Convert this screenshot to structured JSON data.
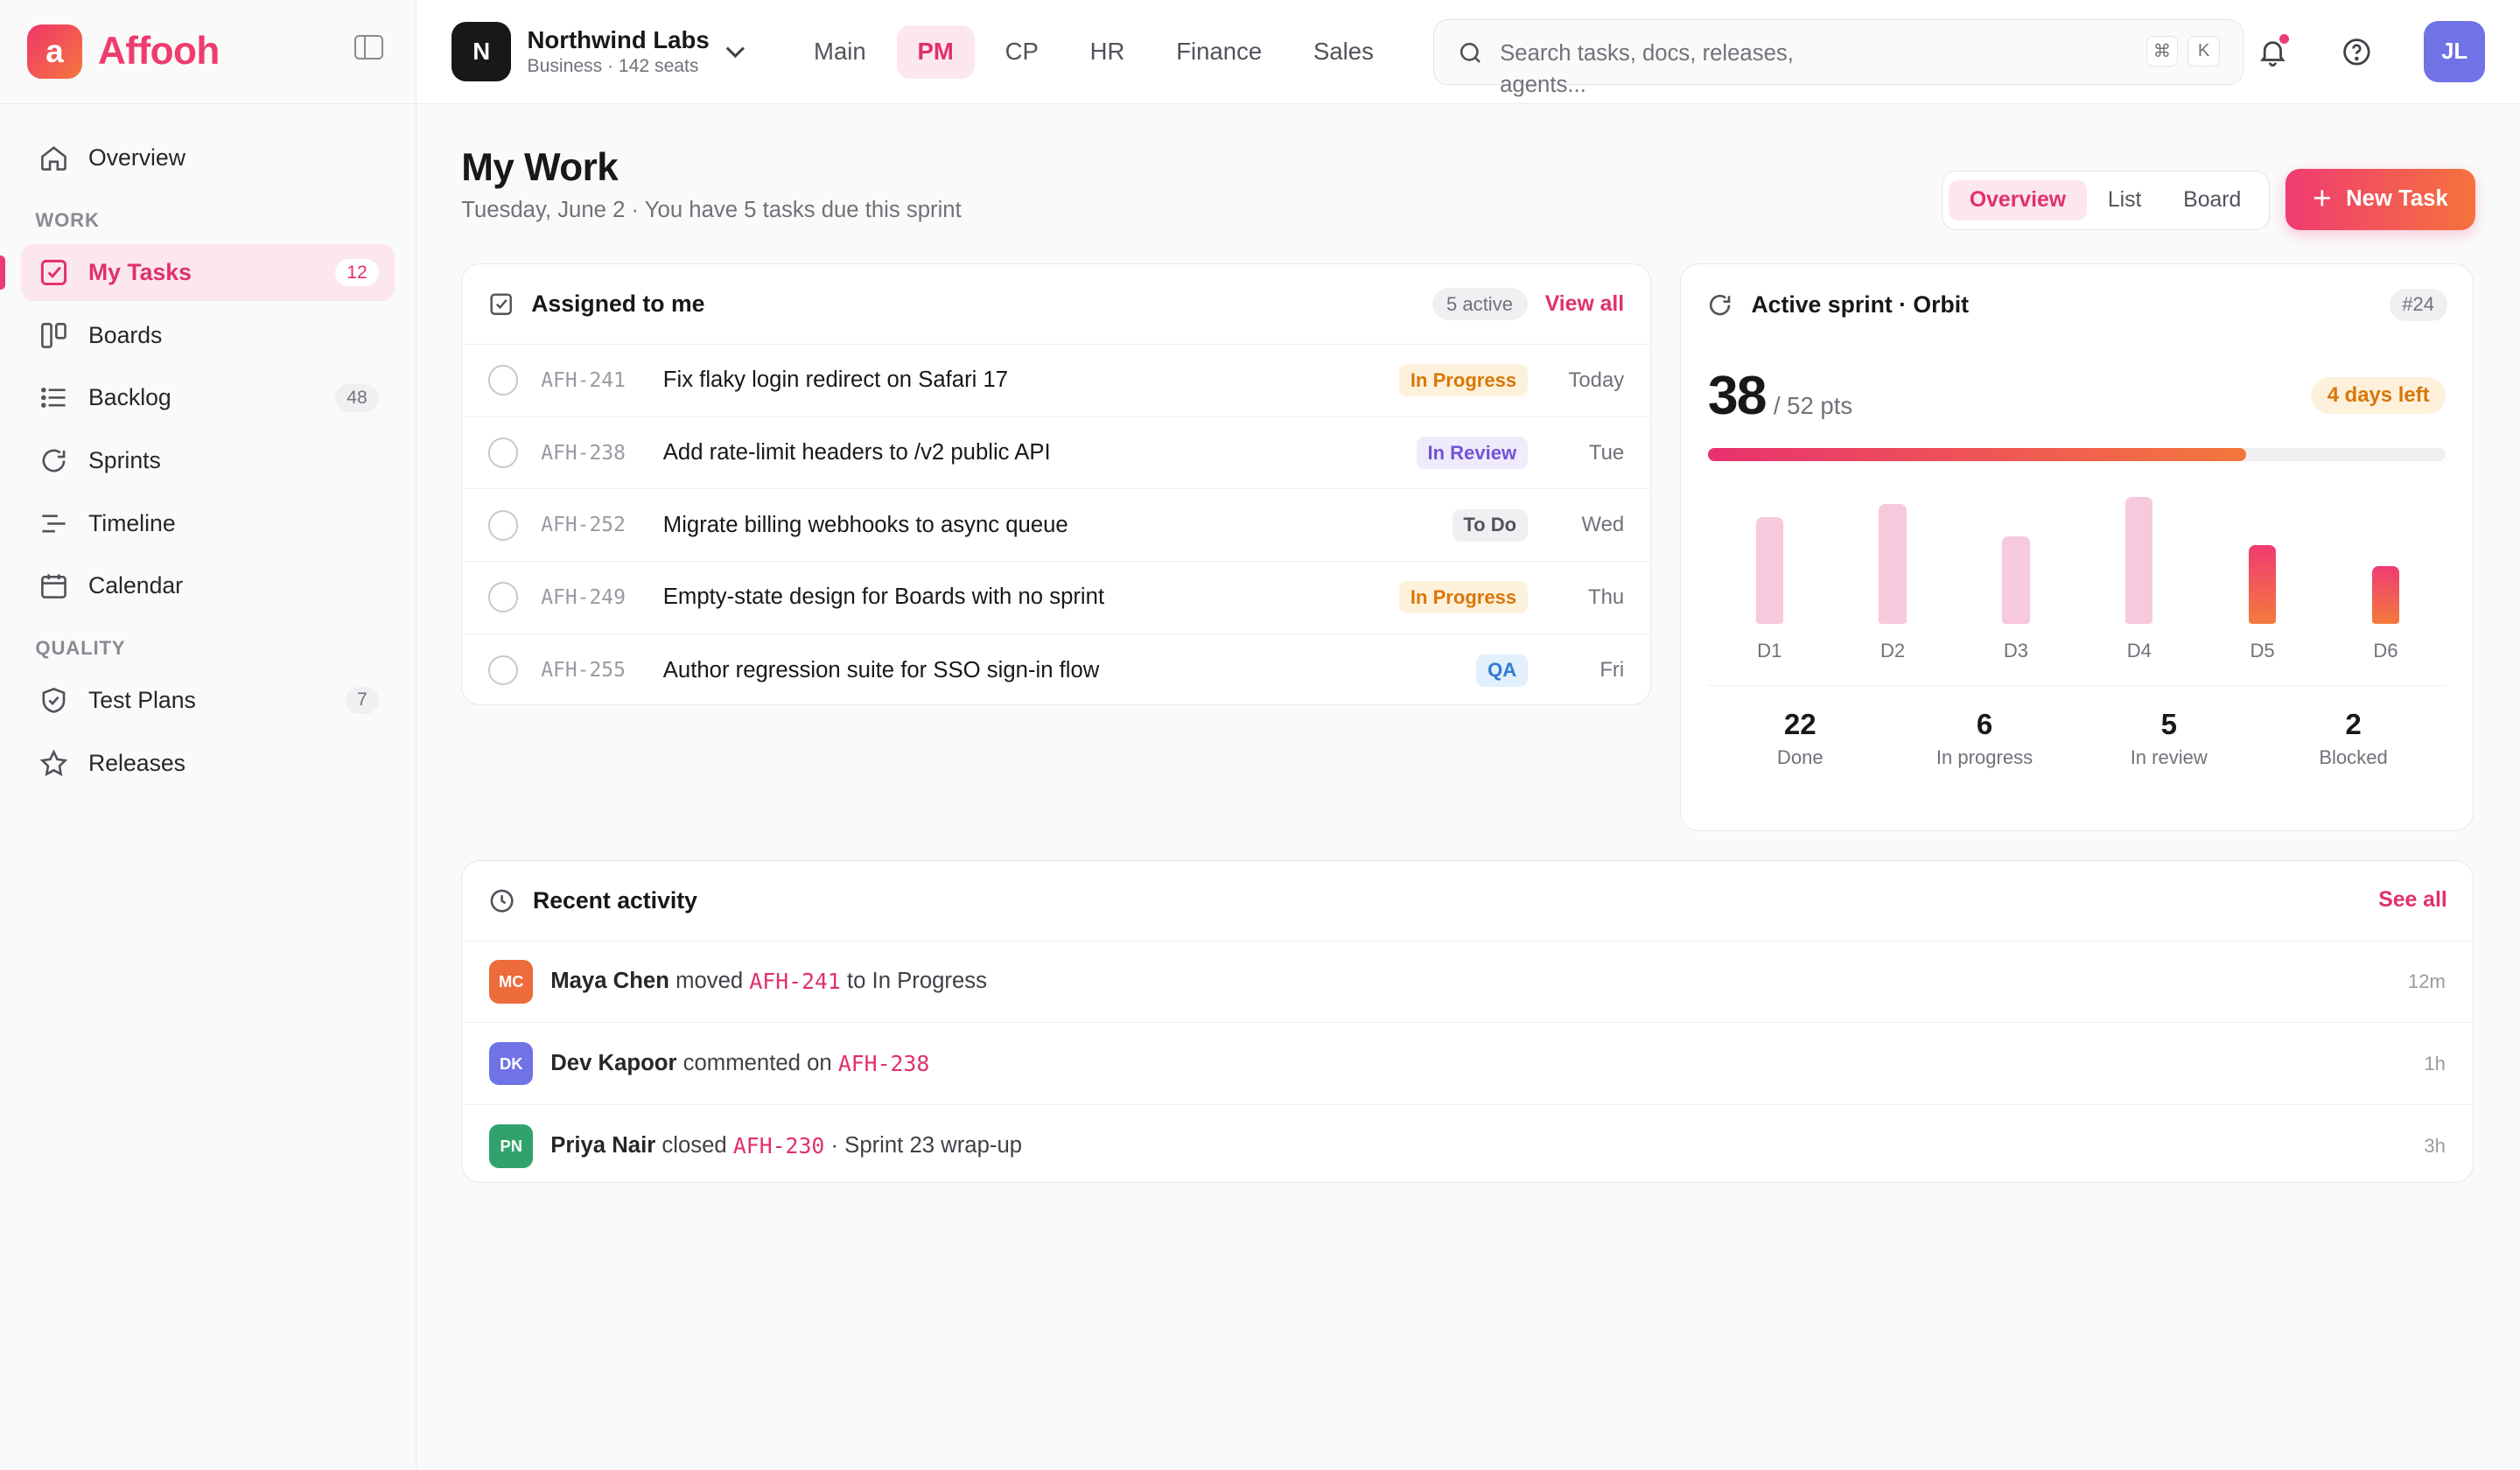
{
  "app": {
    "name": "Affooh",
    "logo_letter": "a"
  },
  "org": {
    "initial": "N",
    "name": "Northwind Labs",
    "sub": "Business · 142 seats"
  },
  "tabs": [
    {
      "label": "Main"
    },
    {
      "label": "PM",
      "active": true
    },
    {
      "label": "CP"
    },
    {
      "label": "HR"
    },
    {
      "label": "Finance"
    },
    {
      "label": "Sales"
    }
  ],
  "search": {
    "placeholder": "Search tasks, docs, releases, agents...",
    "kbd1": "⌘",
    "kbd2": "K"
  },
  "user": {
    "initials": "JL"
  },
  "sidebar": {
    "overview": "Overview",
    "work_label": "WORK",
    "quality_label": "QUALITY",
    "items": [
      {
        "label": "My Tasks",
        "count": "12",
        "icon": "check-square-icon",
        "active": true
      },
      {
        "label": "Boards",
        "icon": "boards-icon"
      },
      {
        "label": "Backlog",
        "count": "48",
        "icon": "list-icon"
      },
      {
        "label": "Sprints",
        "icon": "refresh-icon"
      },
      {
        "label": "Timeline",
        "icon": "timeline-icon"
      },
      {
        "label": "Calendar",
        "icon": "calendar-icon"
      },
      {
        "label": "Test Plans",
        "count": "7",
        "icon": "shield-check-icon"
      },
      {
        "label": "Releases",
        "icon": "star-icon"
      }
    ]
  },
  "page": {
    "title": "My Work",
    "subtitle": "Tuesday, June 2 · You have 5 tasks due this sprint",
    "views": [
      "Overview",
      "List",
      "Board"
    ],
    "new_task": "New Task"
  },
  "assigned": {
    "title": "Assigned to me",
    "active_count": "5 active",
    "view_all": "View all",
    "tasks": [
      {
        "id": "AFH-241",
        "name": "Fix flaky login redirect on Safari 17",
        "status": "In Progress",
        "due": "Today"
      },
      {
        "id": "AFH-238",
        "name": "Add rate-limit headers to /v2 public API",
        "status": "In Review",
        "due": "Tue"
      },
      {
        "id": "AFH-252",
        "name": "Migrate billing webhooks to async queue",
        "status": "To Do",
        "due": "Wed"
      },
      {
        "id": "AFH-249",
        "name": "Empty-state design for Boards with no sprint",
        "status": "In Progress",
        "due": "Thu"
      },
      {
        "id": "AFH-255",
        "name": "Author regression suite for SSO sign-in flow",
        "status": "QA",
        "due": "Fri"
      }
    ]
  },
  "sprint": {
    "title": "Active sprint · Orbit",
    "number": "#24",
    "points_done": "38",
    "points_total": "/ 52 pts",
    "progress": 0.73,
    "days_left": "4 days left",
    "stats": [
      {
        "value": "22",
        "label": "Done"
      },
      {
        "value": "6",
        "label": "In progress"
      },
      {
        "value": "5",
        "label": "In review"
      },
      {
        "value": "2",
        "label": "Blocked"
      }
    ]
  },
  "chart_data": {
    "type": "bar",
    "categories": [
      "D1",
      "D2",
      "D3",
      "D4",
      "D5",
      "D6"
    ],
    "values": [
      72,
      81,
      59,
      86,
      53,
      39
    ],
    "ylim": [
      0,
      100
    ],
    "highlight": [
      "D5",
      "D6"
    ],
    "colors": {
      "normal": "#f8c8dc",
      "highlight_from": "#ef3b72",
      "highlight_to": "#f47a3e"
    }
  },
  "activity": {
    "title": "Recent activity",
    "see_all": "See all",
    "items": [
      {
        "initials": "MC",
        "color": "#ee6b3c",
        "name": "Maya Chen",
        "verb": "moved",
        "code": "AFH-241",
        "rest": "to In Progress",
        "time": "12m"
      },
      {
        "initials": "DK",
        "color": "#6f73e6",
        "name": "Dev Kapoor",
        "verb": "commented on",
        "code": "AFH-238",
        "rest": "",
        "time": "1h"
      },
      {
        "initials": "PN",
        "color": "#2fa36b",
        "name": "Priya Nair",
        "verb": "closed",
        "code": "AFH-230",
        "rest": "· Sprint 23 wrap-up",
        "time": "3h"
      }
    ]
  },
  "colors": {
    "accent": "#e1306c",
    "brand_gradient_from": "#f0356b",
    "brand_gradient_to": "#f4773d"
  }
}
